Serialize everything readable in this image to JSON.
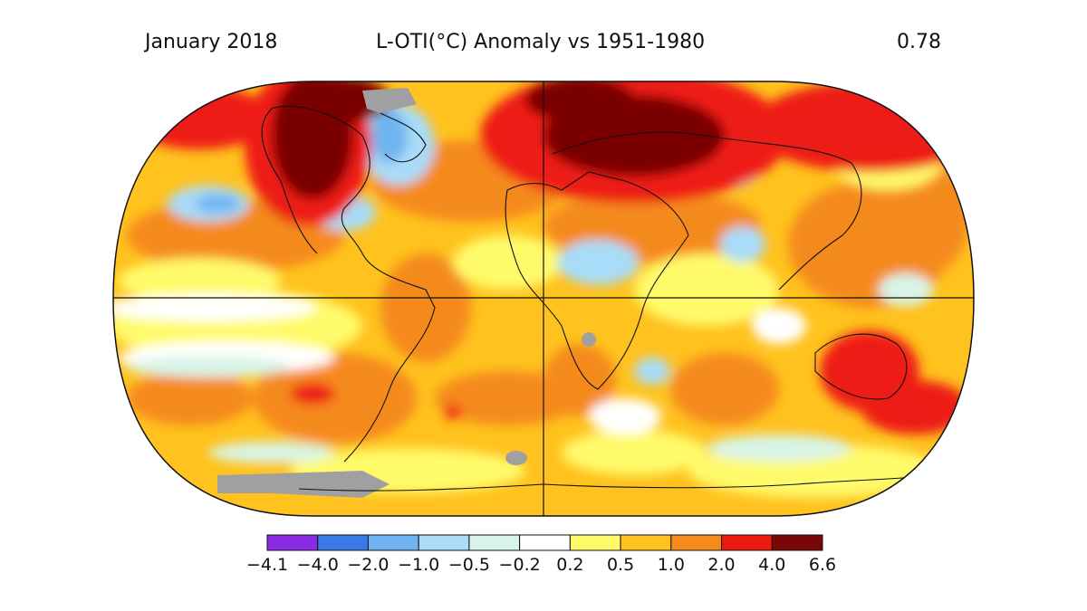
{
  "header": {
    "period": "January 2018",
    "title": "L-OTI(°C) Anomaly vs 1951-1980",
    "global_mean": "0.78"
  },
  "legend": {
    "ticks": [
      "−4.1",
      "−4.0",
      "−2.0",
      "−1.0",
      "−0.5",
      "−0.2",
      "0.2",
      "0.5",
      "1.0",
      "2.0",
      "4.0",
      "6.6"
    ],
    "colors": [
      "#8a2be2",
      "#3a7ae8",
      "#6fb4f0",
      "#a8dcf8",
      "#d8f4e8",
      "#ffffff",
      "#fffa6a",
      "#ffc21e",
      "#f58a1e",
      "#ee1a12",
      "#7a0606"
    ],
    "no_data_color": "#a0a0a0"
  }
}
